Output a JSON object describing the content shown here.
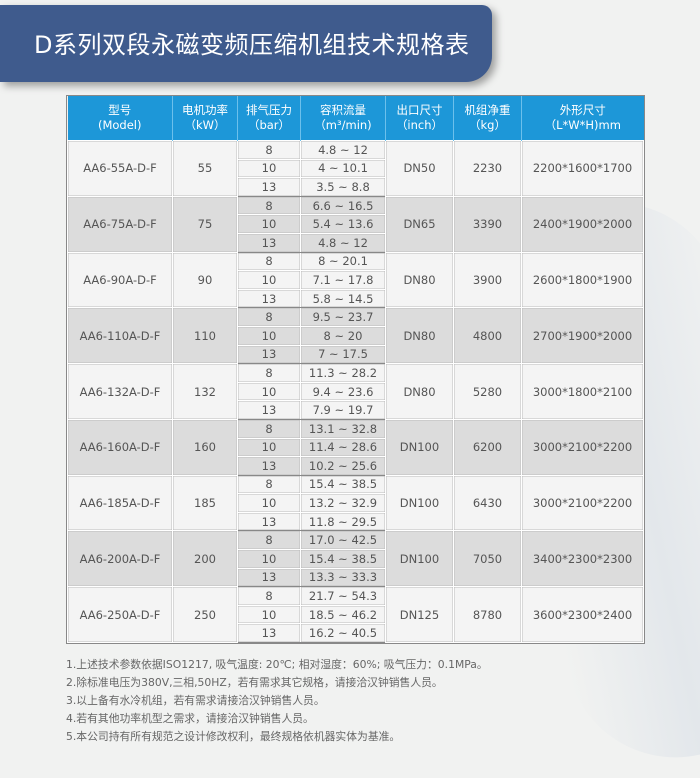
{
  "title": "D系列双段永磁变频压缩机组技术规格表",
  "headers": [
    [
      "型号",
      "(Model)"
    ],
    [
      "电机功率",
      "（kW）"
    ],
    [
      "排气压力",
      "（bar）"
    ],
    [
      "容积流量",
      "（m³/min)"
    ],
    [
      "出口尺寸",
      "（inch）"
    ],
    [
      "机组净重",
      "（kg）"
    ],
    [
      "外形尺寸",
      "（L*W*H)mm"
    ]
  ],
  "rows": [
    {
      "model": "AA6-55A-D-F",
      "power": "55",
      "pressures": [
        "8",
        "10",
        "13"
      ],
      "flows": [
        "4.8 ~ 12",
        "4 ~ 10.1",
        "3.5 ~ 8.8"
      ],
      "outlet": "DN50",
      "weight": "2230",
      "size": "2200*1600*1700"
    },
    {
      "model": "AA6-75A-D-F",
      "power": "75",
      "pressures": [
        "8",
        "10",
        "13"
      ],
      "flows": [
        "6.6 ~ 16.5",
        "5.4 ~ 13.6",
        "4.8 ~ 12"
      ],
      "outlet": "DN65",
      "weight": "3390",
      "size": "2400*1900*2000"
    },
    {
      "model": "AA6-90A-D-F",
      "power": "90",
      "pressures": [
        "8",
        "10",
        "13"
      ],
      "flows": [
        "8 ~ 20.1",
        "7.1 ~ 17.8",
        "5.8 ~ 14.5"
      ],
      "outlet": "DN80",
      "weight": "3900",
      "size": "2600*1800*1900"
    },
    {
      "model": "AA6-110A-D-F",
      "power": "110",
      "pressures": [
        "8",
        "10",
        "13"
      ],
      "flows": [
        "9.5 ~ 23.7",
        "8 ~ 20",
        "7 ~ 17.5"
      ],
      "outlet": "DN80",
      "weight": "4800",
      "size": "2700*1900*2000"
    },
    {
      "model": "AA6-132A-D-F",
      "power": "132",
      "pressures": [
        "8",
        "10",
        "13"
      ],
      "flows": [
        "11.3 ~ 28.2",
        "9.4 ~ 23.6",
        "7.9 ~ 19.7"
      ],
      "outlet": "DN80",
      "weight": "5280",
      "size": "3000*1800*2100"
    },
    {
      "model": "AA6-160A-D-F",
      "power": "160",
      "pressures": [
        "8",
        "10",
        "13"
      ],
      "flows": [
        "13.1 ~ 32.8",
        "11.4 ~ 28.6",
        "10.2 ~ 25.6"
      ],
      "outlet": "DN100",
      "weight": "6200",
      "size": "3000*2100*2200"
    },
    {
      "model": "AA6-185A-D-F",
      "power": "185",
      "pressures": [
        "8",
        "10",
        "13"
      ],
      "flows": [
        "15.4 ~ 38.5",
        "13.2 ~ 32.9",
        "11.8 ~ 29.5"
      ],
      "outlet": "DN100",
      "weight": "6430",
      "size": "3000*2100*2200"
    },
    {
      "model": "AA6-200A-D-F",
      "power": "200",
      "pressures": [
        "8",
        "10",
        "13"
      ],
      "flows": [
        "17.0 ~ 42.5",
        "15.4 ~ 38.5",
        "13.3 ~ 33.3"
      ],
      "outlet": "DN100",
      "weight": "7050",
      "size": "3400*2300*2300"
    },
    {
      "model": "AA6-250A-D-F",
      "power": "250",
      "pressures": [
        "8",
        "10",
        "13"
      ],
      "flows": [
        "21.7 ~ 54.3",
        "18.5 ~ 46.2",
        "16.2 ~ 40.5"
      ],
      "outlet": "DN125",
      "weight": "8780",
      "size": "3600*2300*2400"
    }
  ],
  "notes": [
    "1.上述技术参数依据ISO1217, 吸气温度: 20℃; 相对湿度：60%; 吸气压力：0.1MPa。",
    "2.除标准电压为380V,三相,50HZ，若有需求其它规格，请接洽汉钟销售人员。",
    "3.以上备有水冷机组，若有需求请接洽汉钟销售人员。",
    "4.若有其他功率机型之需求，请接洽汉钟销售人员。",
    "5.本公司持有所有规范之设计修改权利，最终规格依机器实体为基准。"
  ],
  "colors": {
    "banner": "#3f5b8d",
    "header": "#1d97d8",
    "row_alt": "#dcdcdc"
  }
}
